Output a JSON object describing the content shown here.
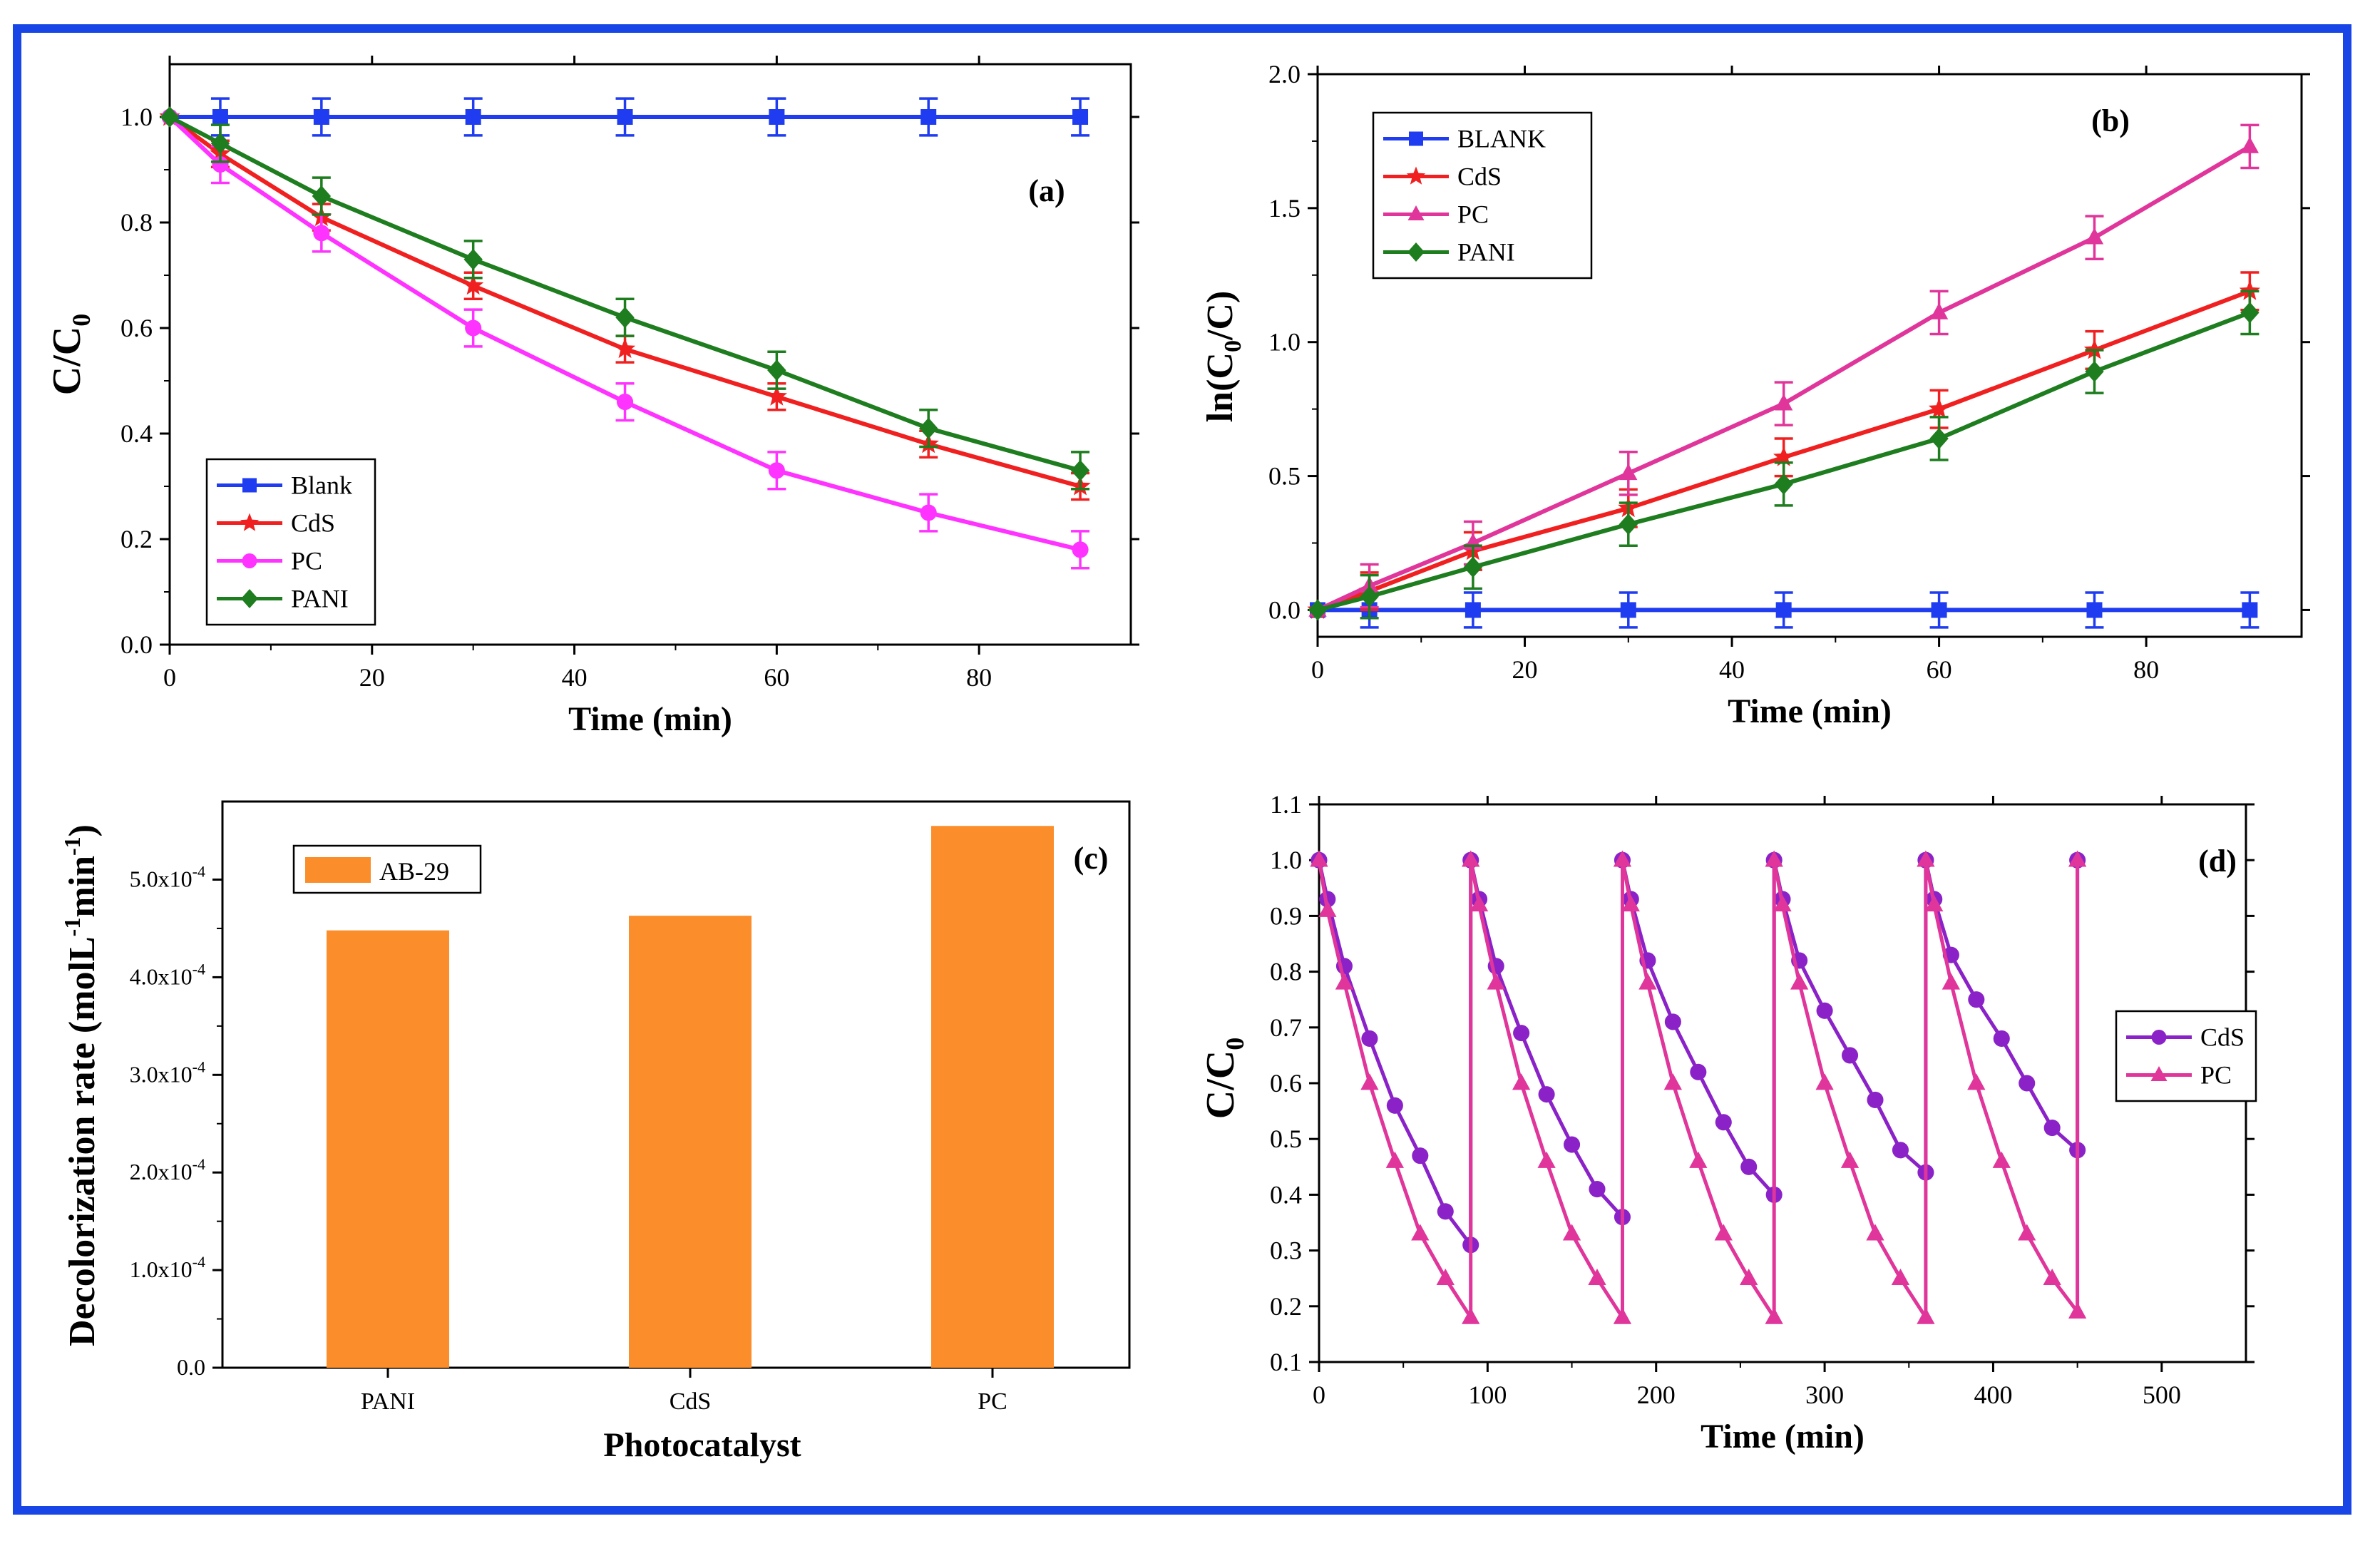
{
  "chart_data": [
    {
      "id": "a",
      "type": "line",
      "panel_label": "(a)",
      "xlabel": "Time (min)",
      "ylabel_main": "C/C",
      "ylabel_sub": "0",
      "xlim": [
        0,
        95
      ],
      "ylim": [
        0,
        1.1
      ],
      "xticks": [
        0,
        20,
        40,
        60,
        80
      ],
      "yticks": [
        0.0,
        0.2,
        0.4,
        0.6,
        0.8,
        1.0
      ],
      "ytick_labels": [
        "0.0",
        "0.2",
        "0.4",
        "0.6",
        "0.8",
        "1.0"
      ],
      "x": [
        0,
        5,
        15,
        30,
        45,
        60,
        75,
        90
      ],
      "legend": [
        "Blank",
        "CdS",
        "PC",
        "PANI"
      ],
      "series": [
        {
          "name": "Blank",
          "color": "#1f3cf0",
          "marker": "square",
          "errorbars": true,
          "err": 0.035,
          "x": [
            5,
            15,
            30,
            45,
            60,
            75,
            90
          ],
          "values": [
            1.0,
            1.0,
            1.0,
            1.0,
            1.0,
            1.0,
            1.0
          ],
          "start": [
            0,
            1.0
          ]
        },
        {
          "name": "CdS",
          "color": "#f02020",
          "marker": "star",
          "errorbars": true,
          "err": 0.025,
          "x": [
            0,
            5,
            15,
            30,
            45,
            60,
            75,
            90
          ],
          "values": [
            1.0,
            0.93,
            0.81,
            0.68,
            0.56,
            0.47,
            0.38,
            0.3
          ]
        },
        {
          "name": "PC",
          "color": "#ff33ff",
          "marker": "circle",
          "errorbars": true,
          "err": 0.035,
          "x": [
            0,
            5,
            15,
            30,
            45,
            60,
            75,
            90
          ],
          "values": [
            1.0,
            0.91,
            0.78,
            0.6,
            0.46,
            0.33,
            0.25,
            0.18
          ]
        },
        {
          "name": "PANI",
          "color": "#1e7d1e",
          "marker": "diamond",
          "errorbars": true,
          "err": 0.035,
          "x": [
            0,
            5,
            15,
            30,
            45,
            60,
            75,
            90
          ],
          "values": [
            1.0,
            0.95,
            0.85,
            0.73,
            0.62,
            0.52,
            0.41,
            0.33
          ]
        }
      ]
    },
    {
      "id": "b",
      "type": "line",
      "panel_label": "(b)",
      "xlabel": "Time (min)",
      "ylabel_parts": [
        "ln(C",
        "0",
        "/C)"
      ],
      "xlim": [
        0,
        95
      ],
      "ylim": [
        -0.1,
        2.0
      ],
      "xticks": [
        0,
        20,
        40,
        60,
        80
      ],
      "yticks": [
        0.0,
        0.5,
        1.0,
        1.5,
        2.0
      ],
      "ytick_labels": [
        "0.0",
        "0.5",
        "1.0",
        "1.5",
        "2.0"
      ],
      "legend": [
        "BLANK",
        "CdS",
        "PC",
        "PANI"
      ],
      "series": [
        {
          "name": "BLANK",
          "color": "#1f3cf0",
          "marker": "square",
          "errorbars": true,
          "err": 0.065,
          "x": [
            0,
            5,
            15,
            30,
            45,
            60,
            75,
            90
          ],
          "values": [
            0,
            0,
            0,
            0,
            0,
            0,
            0,
            0
          ]
        },
        {
          "name": "CdS",
          "color": "#f02020",
          "marker": "star",
          "errorbars": true,
          "err": 0.07,
          "x": [
            0,
            5,
            15,
            30,
            45,
            60,
            75,
            90
          ],
          "values": [
            0,
            0.07,
            0.22,
            0.38,
            0.57,
            0.75,
            0.97,
            1.19
          ]
        },
        {
          "name": "PC",
          "color": "#e0359a",
          "marker": "triangle",
          "errorbars": true,
          "err": 0.08,
          "x": [
            0,
            5,
            15,
            30,
            45,
            60,
            75,
            90
          ],
          "values": [
            0,
            0.09,
            0.25,
            0.51,
            0.77,
            1.11,
            1.39,
            1.73
          ]
        },
        {
          "name": "PANI",
          "color": "#1e7d1e",
          "marker": "diamond",
          "errorbars": true,
          "err": 0.08,
          "x": [
            0,
            5,
            15,
            30,
            45,
            60,
            75,
            90
          ],
          "values": [
            0,
            0.05,
            0.16,
            0.32,
            0.47,
            0.64,
            0.89,
            1.11
          ]
        }
      ]
    },
    {
      "id": "c",
      "type": "bar",
      "panel_label": "(c)",
      "xlabel": "Photocatalyst",
      "ylabel": "Decolorization rate (molL",
      "ylabel_sup1": "-1",
      "ylabel_mid": "min",
      "ylabel_sup2": "-1",
      "ylabel_end": ")",
      "categories": [
        "PANI",
        "CdS",
        "PC"
      ],
      "legend": [
        "AB-29"
      ],
      "color": "#fb8e2a",
      "ylim": [
        0,
        5.8
      ],
      "yticks": [
        0,
        1,
        2,
        3,
        4,
        5
      ],
      "ytick_labels": [
        "0.0",
        "1.0x10",
        "2.0x10",
        "3.0x10",
        "4.0x10",
        "5.0x10"
      ],
      "ytick_exponent": "-4",
      "unit_multiplier": "x10^-4",
      "series": [
        {
          "name": "AB-29",
          "values": [
            4.48,
            4.63,
            5.55
          ]
        }
      ]
    },
    {
      "id": "d",
      "type": "line",
      "panel_label": "(d)",
      "xlabel": "Time (min)",
      "ylabel_main": "C/C",
      "ylabel_sub": "0",
      "xlim": [
        0,
        550
      ],
      "ylim": [
        0.1,
        1.1
      ],
      "xticks": [
        0,
        100,
        200,
        300,
        400,
        500
      ],
      "yticks": [
        0.1,
        0.2,
        0.3,
        0.4,
        0.5,
        0.6,
        0.7,
        0.8,
        0.9,
        1.0,
        1.1
      ],
      "ytick_labels": [
        "0.1",
        "0.2",
        "0.3",
        "0.4",
        "0.5",
        "0.6",
        "0.7",
        "0.8",
        "0.9",
        "1.0",
        "1.1"
      ],
      "legend": [
        "CdS",
        "PC"
      ],
      "series": [
        {
          "name": "CdS",
          "color": "#8a22c8",
          "marker": "circle",
          "x": [
            0,
            5,
            15,
            30,
            45,
            60,
            75,
            90,
            90,
            95,
            105,
            120,
            135,
            150,
            165,
            180,
            180,
            185,
            195,
            210,
            225,
            240,
            255,
            270,
            270,
            275,
            285,
            300,
            315,
            330,
            345,
            360,
            360,
            365,
            375,
            390,
            405,
            420,
            435,
            450,
            450
          ],
          "values": [
            1.0,
            0.93,
            0.81,
            0.68,
            0.56,
            0.47,
            0.37,
            0.31,
            1.0,
            0.93,
            0.81,
            0.69,
            0.58,
            0.49,
            0.41,
            0.36,
            1.0,
            0.93,
            0.82,
            0.71,
            0.62,
            0.53,
            0.45,
            0.4,
            1.0,
            0.93,
            0.82,
            0.73,
            0.65,
            0.57,
            0.48,
            0.44,
            1.0,
            0.93,
            0.83,
            0.75,
            0.68,
            0.6,
            0.52,
            0.48,
            1.0
          ]
        },
        {
          "name": "PC",
          "color": "#e0359a",
          "marker": "triangle",
          "x": [
            0,
            5,
            15,
            30,
            45,
            60,
            75,
            90,
            90,
            95,
            105,
            120,
            135,
            150,
            165,
            180,
            180,
            185,
            195,
            210,
            225,
            240,
            255,
            270,
            270,
            275,
            285,
            300,
            315,
            330,
            345,
            360,
            360,
            365,
            375,
            390,
            405,
            420,
            435,
            450,
            450
          ],
          "values": [
            1.0,
            0.91,
            0.78,
            0.6,
            0.46,
            0.33,
            0.25,
            0.18,
            1.0,
            0.92,
            0.78,
            0.6,
            0.46,
            0.33,
            0.25,
            0.18,
            1.0,
            0.92,
            0.78,
            0.6,
            0.46,
            0.33,
            0.25,
            0.18,
            1.0,
            0.92,
            0.78,
            0.6,
            0.46,
            0.33,
            0.25,
            0.18,
            1.0,
            0.92,
            0.78,
            0.6,
            0.46,
            0.33,
            0.25,
            0.19,
            1.0
          ]
        }
      ]
    }
  ]
}
